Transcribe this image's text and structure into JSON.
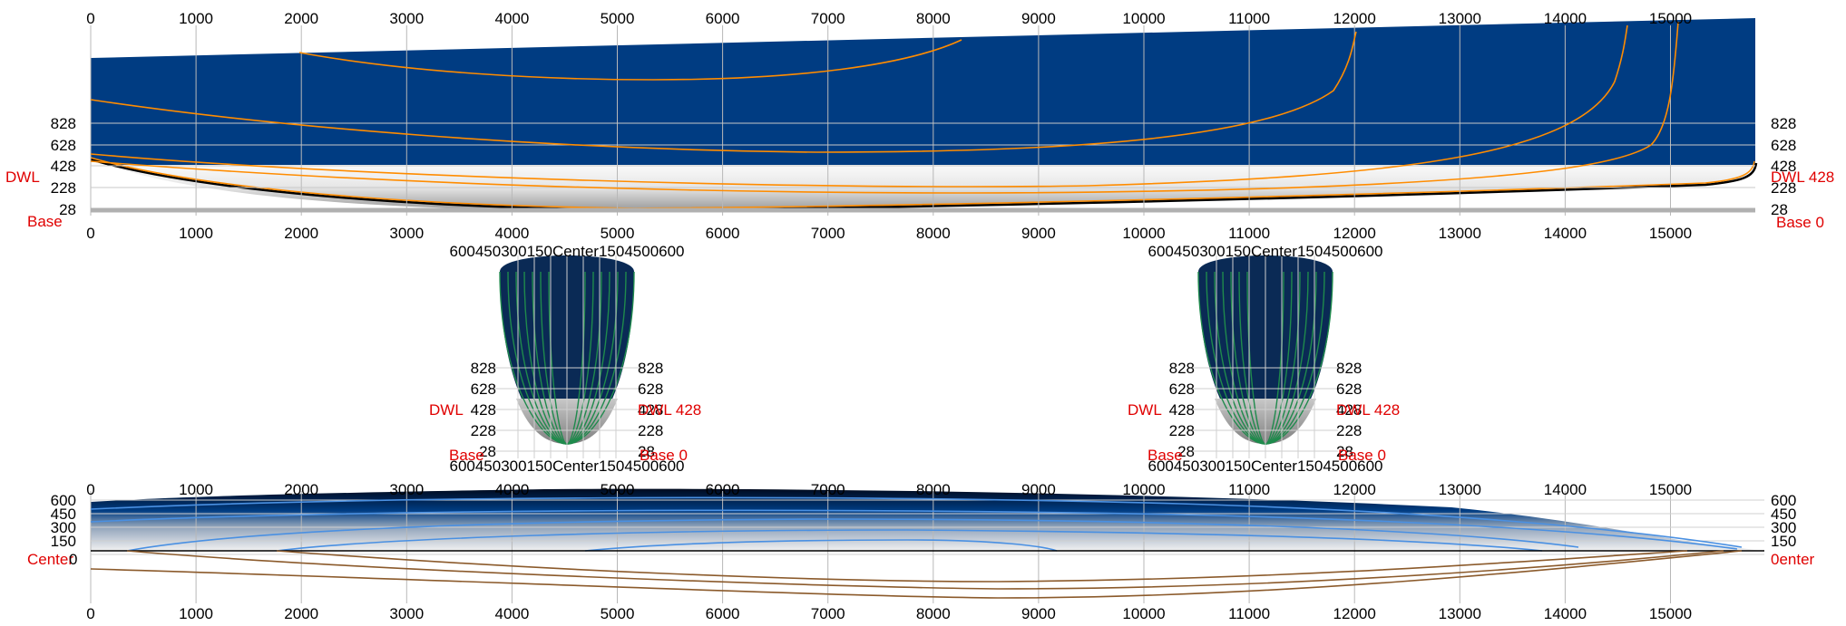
{
  "x_ticks": [
    "0",
    "1000",
    "2000",
    "3000",
    "4000",
    "5000",
    "6000",
    "7000",
    "8000",
    "9000",
    "10000",
    "11000",
    "12000",
    "13000",
    "14000",
    "15000"
  ],
  "profile": {
    "waterline_labels": [
      "828",
      "628",
      "428",
      "228",
      "28"
    ],
    "dwl_label": "DWL",
    "base_label": "Base",
    "base_right": "Base 0",
    "dwl_right": "DWL 428",
    "base_zero": "0"
  },
  "sections": {
    "half_breadth_ticks_text": "600450300150Center1504500600",
    "waterline_labels": [
      "828",
      "628",
      "428",
      "228",
      "28"
    ],
    "dwl_label": "DWL",
    "base_label": "Base",
    "base_right": "Base 0",
    "dwl_right": "DWL 428"
  },
  "plan": {
    "half_breadth_labels": [
      "600",
      "450",
      "300",
      "150",
      "0"
    ],
    "center_label": "Center",
    "center_right": "0enter"
  },
  "colors": {
    "hull_fill": "#003c82",
    "section_fill": "#0a2a55",
    "contour": "#ff8c00",
    "section_mesh": "#1f8a4c",
    "plan_contour": "#4a90e2",
    "buttock": "#8b5a2b",
    "grid": "#b8b8b8"
  }
}
